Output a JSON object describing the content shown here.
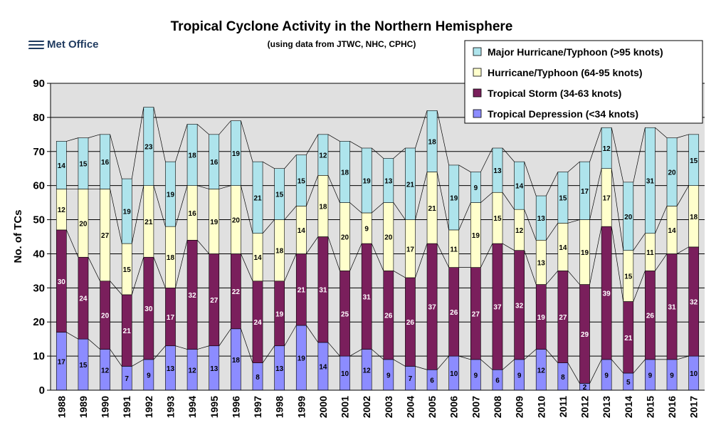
{
  "logo": {
    "text": "Met Office"
  },
  "chart_data": {
    "type": "bar",
    "stacked": true,
    "title": "Tropical Cyclone Activity in the Northern Hemisphere",
    "subtitle": "(using data from JTWC, NHC, CPHC)",
    "ylabel": "No. of TCs",
    "xlabel": "",
    "ylim": [
      0,
      90
    ],
    "yticks": [
      0,
      10,
      20,
      30,
      40,
      50,
      60,
      70,
      80,
      90
    ],
    "grid": true,
    "legend_position": "top-right",
    "categories": [
      "1988",
      "1989",
      "1990",
      "1991",
      "1992",
      "1993",
      "1994",
      "1995",
      "1996",
      "1997",
      "1998",
      "1999",
      "2000",
      "2001",
      "2002",
      "2003",
      "2004",
      "2005",
      "2006",
      "2007",
      "2008",
      "2009",
      "2010",
      "2011",
      "2012",
      "2013",
      "2014",
      "2015",
      "2016",
      "2017"
    ],
    "series": [
      {
        "name": "Tropical Depression (<34 knots)",
        "color": "#8c8cff",
        "values": [
          17,
          15,
          12,
          7,
          9,
          13,
          12,
          13,
          18,
          8,
          13,
          19,
          14,
          10,
          12,
          9,
          7,
          6,
          10,
          9,
          6,
          9,
          12,
          8,
          2,
          9,
          5,
          9,
          9,
          10
        ]
      },
      {
        "name": "Tropical Storm (34-63 knots)",
        "color": "#7a1f5c",
        "values": [
          30,
          24,
          20,
          21,
          30,
          17,
          32,
          27,
          22,
          24,
          19,
          21,
          31,
          25,
          31,
          26,
          26,
          37,
          26,
          27,
          37,
          32,
          19,
          27,
          29,
          39,
          21,
          26,
          31,
          32
        ]
      },
      {
        "name": "Hurricane/Typhoon (64-95 knots)",
        "color": "#ffffcc",
        "values": [
          12,
          20,
          27,
          15,
          21,
          18,
          16,
          19,
          20,
          14,
          18,
          14,
          18,
          20,
          9,
          20,
          17,
          21,
          11,
          19,
          15,
          12,
          13,
          14,
          19,
          17,
          15,
          11,
          14,
          18
        ]
      },
      {
        "name": "Major Hurricane/Typhoon (>95 knots)",
        "color": "#aee4ec",
        "values": [
          14,
          15,
          16,
          19,
          23,
          19,
          18,
          16,
          19,
          21,
          15,
          15,
          12,
          18,
          19,
          13,
          21,
          18,
          19,
          9,
          13,
          14,
          13,
          15,
          17,
          12,
          20,
          31,
          20,
          15
        ]
      }
    ]
  }
}
